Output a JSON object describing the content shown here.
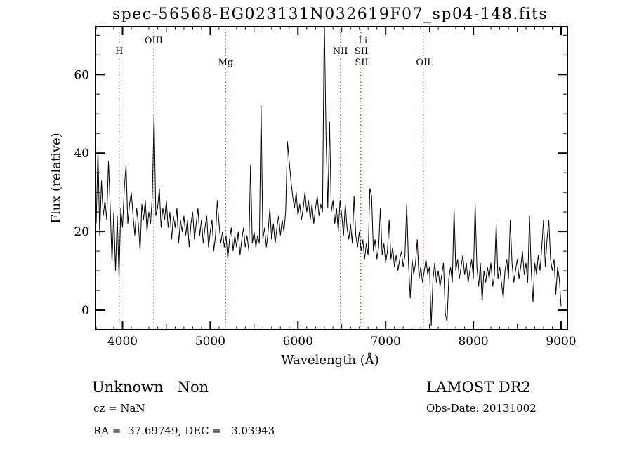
{
  "chart_data": {
    "type": "line",
    "title": "spec-56568-EG023131N032619F07_sp04-148.fits",
    "xlabel": "Wavelength (Å)",
    "ylabel": "Flux (relative)",
    "xlim": [
      3692,
      9072
    ],
    "ylim": [
      -5.0,
      72.2
    ],
    "x_ticks": [
      4000,
      5000,
      6000,
      7000,
      8000,
      9000
    ],
    "y_ticks": [
      0,
      20,
      40,
      60
    ],
    "x_minor_step": 100,
    "x_medium_step": 500,
    "y_minor_step": 5,
    "grid": false,
    "legend": "none",
    "line_color": "#000000",
    "marker_line_color": "#9b392b",
    "line_markers": [
      3963,
      4356,
      5176,
      6484,
      6708,
      6717,
      6731,
      7430
    ],
    "line_labels": [
      {
        "text": "OIII",
        "wavelength": 4356,
        "row": 1
      },
      {
        "text": "Li",
        "wavelength": 6741,
        "row": 1
      },
      {
        "text": "H",
        "wavelength": 3963,
        "row": 2
      },
      {
        "text": "NII",
        "wavelength": 6484,
        "row": 2
      },
      {
        "text": "SII",
        "wavelength": 6722,
        "row": 2
      },
      {
        "text": "Mg",
        "wavelength": 5176,
        "row": 3
      },
      {
        "text": "SII",
        "wavelength": 6726,
        "row": 3
      },
      {
        "text": "OII",
        "wavelength": 7430,
        "row": 3
      }
    ],
    "series": [
      {
        "name": "flux",
        "x_start": 3700,
        "x_step": 20,
        "values": [
          22,
          41,
          19,
          33,
          24,
          28,
          23,
          38,
          26,
          12,
          25,
          10,
          24,
          8,
          26,
          21,
          31,
          37,
          22,
          27,
          30,
          24,
          19,
          26,
          22,
          15,
          27,
          23,
          28,
          20,
          25,
          22,
          29,
          50,
          24,
          26,
          31,
          21,
          26,
          23,
          28,
          21,
          25,
          18,
          24,
          21,
          26,
          17,
          23,
          20,
          24,
          19,
          23,
          16,
          22,
          25,
          18,
          22,
          26,
          19,
          23,
          17,
          21,
          24,
          16,
          20,
          23,
          15,
          19,
          28,
          22,
          17,
          20,
          16,
          19,
          13,
          18,
          21,
          15,
          19,
          16,
          20,
          14,
          18,
          21,
          16,
          19,
          15,
          37,
          17,
          20,
          16,
          19,
          17,
          52,
          18,
          21,
          16,
          20,
          26,
          18,
          22,
          17,
          21,
          24,
          19,
          23,
          20,
          25,
          43,
          38,
          33,
          29,
          26,
          30,
          24,
          27,
          23,
          26,
          30,
          25,
          28,
          23,
          27,
          22,
          26,
          29,
          24,
          27,
          25,
          75,
          44,
          26,
          48,
          25,
          28,
          22,
          26,
          20,
          28,
          24,
          19,
          27,
          21,
          18,
          22,
          17,
          29,
          19,
          16,
          20,
          15,
          18,
          13,
          17,
          14,
          31,
          29,
          15,
          18,
          13,
          16,
          26,
          14,
          17,
          12,
          15,
          23,
          13,
          16,
          11,
          14,
          10,
          13,
          15,
          11,
          14,
          27,
          12,
          3,
          13,
          9,
          12,
          18,
          8,
          11,
          7,
          10,
          13,
          9,
          11,
          -4,
          8,
          12,
          7,
          10,
          6,
          9,
          12,
          -1,
          -3,
          8,
          11,
          7,
          26,
          10,
          13,
          8,
          11,
          14,
          9,
          12,
          7,
          10,
          13,
          8,
          27,
          11,
          6,
          12,
          2,
          10,
          7,
          11,
          8,
          12,
          6,
          9,
          22,
          8,
          11,
          7,
          3,
          10,
          13,
          8,
          23,
          12,
          7,
          10,
          13,
          8,
          11,
          15,
          9,
          12,
          7,
          24,
          10,
          2,
          12,
          9,
          14,
          10,
          16,
          23,
          11,
          18,
          23,
          13,
          10,
          13,
          4,
          11,
          8,
          1
        ]
      }
    ]
  },
  "footer": {
    "class_label": "Unknown   Non",
    "cz": "cz = NaN",
    "coords": "RA =  37.69749, DEC =   3.03943",
    "survey": "LAMOST DR2",
    "obs_date": "Obs-Date: 20131002"
  }
}
